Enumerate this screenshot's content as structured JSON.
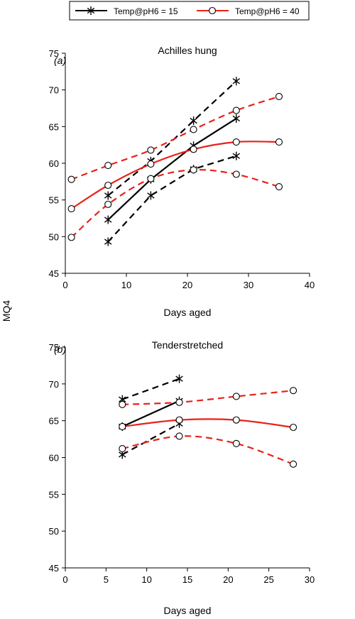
{
  "figure": {
    "y_axis_label": "MQ4",
    "legend": {
      "items": [
        {
          "label": "Temp@pH6 = 15",
          "color": "#000000",
          "marker": "asterisk-icon"
        },
        {
          "label": "Temp@pH6 = 40",
          "color": "#e8221a",
          "marker": "open-circle-icon"
        }
      ]
    }
  },
  "chart_data": [
    {
      "type": "line",
      "panel_label": "(a)",
      "title": "Achilles hung",
      "xlabel": "Days aged",
      "ylabel": "MQ4",
      "xlim": [
        0,
        40
      ],
      "ylim": [
        45,
        75
      ],
      "xticks": [
        0,
        10,
        20,
        30,
        40
      ],
      "yticks": [
        45,
        50,
        55,
        60,
        65,
        70,
        75
      ],
      "grid": false,
      "legend_position": "top-center",
      "series": [
        {
          "name": "Temp@pH6 = 15",
          "role": "mean",
          "color": "#000000",
          "dashed": false,
          "marker": "asterisk",
          "x": [
            7,
            14,
            21,
            28
          ],
          "y": [
            52.3,
            57.8,
            62.4,
            66.1
          ]
        },
        {
          "name": "Temp@pH6 = 15",
          "role": "upper",
          "color": "#000000",
          "dashed": true,
          "marker": "asterisk",
          "x": [
            7,
            14,
            21,
            28
          ],
          "y": [
            55.6,
            60.3,
            65.8,
            71.2
          ]
        },
        {
          "name": "Temp@pH6 = 15",
          "role": "lower",
          "color": "#000000",
          "dashed": true,
          "marker": "asterisk",
          "x": [
            7,
            14,
            21,
            28
          ],
          "y": [
            49.3,
            55.6,
            59.2,
            61.0
          ]
        },
        {
          "name": "Temp@pH6 = 40",
          "role": "mean",
          "color": "#e8221a",
          "dashed": false,
          "marker": "circle",
          "x": [
            1,
            7,
            14,
            21,
            28,
            35
          ],
          "y": [
            53.8,
            57.0,
            59.9,
            61.9,
            62.9,
            62.9
          ]
        },
        {
          "name": "Temp@pH6 = 40",
          "role": "upper",
          "color": "#e8221a",
          "dashed": true,
          "marker": "circle",
          "x": [
            1,
            7,
            14,
            21,
            28,
            35
          ],
          "y": [
            57.8,
            59.7,
            61.8,
            64.6,
            67.2,
            69.1
          ]
        },
        {
          "name": "Temp@pH6 = 40",
          "role": "lower",
          "color": "#e8221a",
          "dashed": true,
          "marker": "circle",
          "x": [
            1,
            7,
            14,
            21,
            28,
            35
          ],
          "y": [
            49.9,
            54.4,
            57.9,
            59.1,
            58.5,
            56.8
          ]
        }
      ]
    },
    {
      "type": "line",
      "panel_label": "(b)",
      "title": "Tenderstretched",
      "xlabel": "Days aged",
      "ylabel": "MQ4",
      "xlim": [
        0,
        30
      ],
      "ylim": [
        45,
        75
      ],
      "xticks": [
        0,
        5,
        10,
        15,
        20,
        25,
        30
      ],
      "yticks": [
        45,
        50,
        55,
        60,
        65,
        70,
        75
      ],
      "grid": false,
      "series": [
        {
          "name": "Temp@pH6 = 15",
          "role": "mean",
          "color": "#000000",
          "dashed": false,
          "marker": "asterisk",
          "x": [
            7,
            14
          ],
          "y": [
            64.2,
            67.7
          ]
        },
        {
          "name": "Temp@pH6 = 15",
          "role": "upper",
          "color": "#000000",
          "dashed": true,
          "marker": "asterisk",
          "x": [
            7,
            14
          ],
          "y": [
            67.9,
            70.7
          ]
        },
        {
          "name": "Temp@pH6 = 15",
          "role": "lower",
          "color": "#000000",
          "dashed": true,
          "marker": "asterisk",
          "x": [
            7,
            14
          ],
          "y": [
            60.4,
            64.6
          ]
        },
        {
          "name": "Temp@pH6 = 40",
          "role": "mean",
          "color": "#e8221a",
          "dashed": false,
          "marker": "circle",
          "x": [
            7,
            14,
            21,
            28
          ],
          "y": [
            64.2,
            65.1,
            65.1,
            64.1
          ]
        },
        {
          "name": "Temp@pH6 = 40",
          "role": "upper",
          "color": "#e8221a",
          "dashed": true,
          "marker": "circle",
          "x": [
            7,
            14,
            21,
            28
          ],
          "y": [
            67.2,
            67.5,
            68.3,
            69.1
          ]
        },
        {
          "name": "Temp@pH6 = 40",
          "role": "lower",
          "color": "#e8221a",
          "dashed": true,
          "marker": "circle",
          "x": [
            7,
            14,
            21,
            28
          ],
          "y": [
            61.2,
            62.9,
            61.9,
            59.1
          ]
        }
      ]
    }
  ]
}
